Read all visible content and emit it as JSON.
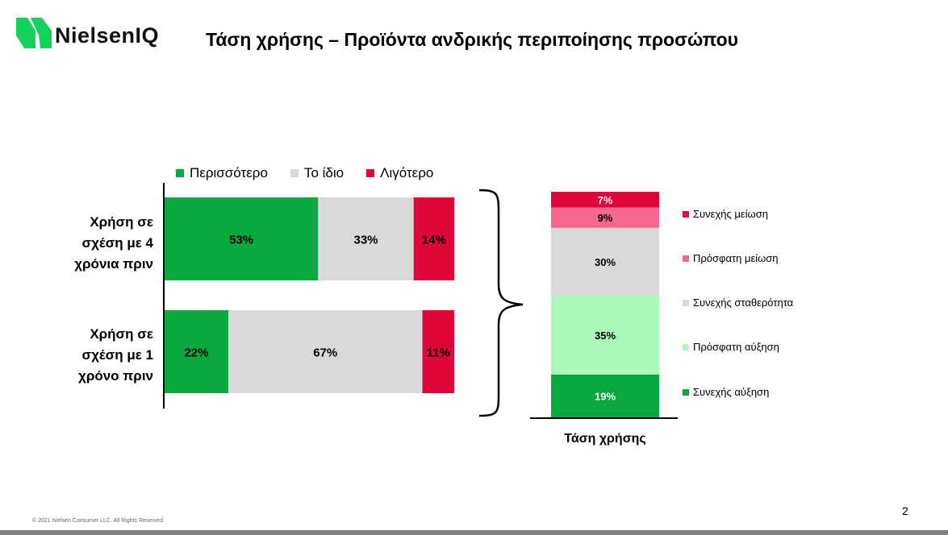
{
  "brand": {
    "name": "NielsenIQ",
    "logo_color": "#13d15a"
  },
  "title": "Τάση χρήσης – Προϊόντα ανδρικής περιποίησης προσώπου",
  "chart_data": [
    {
      "type": "bar",
      "orientation": "horizontal-stacked-100",
      "categories": [
        "Χρήση σε σχέση με 4 χρόνια πριν",
        "Χρήση σε σχέση με 1 χρόνο πριν"
      ],
      "category_lines": [
        [
          "Χρήση σε",
          "σχέση με 4",
          "χρόνια πριν"
        ],
        [
          "Χρήση σε",
          "σχέση με 1",
          "χρόνο πριν"
        ]
      ],
      "series": [
        {
          "name": "Περισσότερο",
          "color": "#0aa83f",
          "values": [
            53,
            22
          ],
          "labels": [
            "53%",
            "22%"
          ]
        },
        {
          "name": "Το ίδιο",
          "color": "#d9d9d9",
          "values": [
            33,
            67
          ],
          "labels": [
            "33%",
            "67%"
          ]
        },
        {
          "name": "Λιγότερο",
          "color": "#e1063a",
          "values": [
            14,
            11
          ],
          "labels": [
            "14%",
            "11%"
          ]
        }
      ],
      "legend_position": "top",
      "xlim": [
        0,
        100
      ]
    },
    {
      "type": "bar",
      "orientation": "vertical-stacked-100",
      "categories": [
        "Τάση χρήσης"
      ],
      "series": [
        {
          "name": "Συνεχής αύξηση",
          "color": "#0aa83f",
          "values": [
            19
          ],
          "labels": [
            "19%"
          ],
          "label_color": "#ffffff"
        },
        {
          "name": "Πρόσφατη αύξηση",
          "color": "#a9f7b9",
          "values": [
            35
          ],
          "labels": [
            "35%"
          ],
          "label_color": "#000000"
        },
        {
          "name": "Συνεχής σταθερότητα",
          "color": "#d9d9d9",
          "values": [
            30
          ],
          "labels": [
            "30%"
          ],
          "label_color": "#000000"
        },
        {
          "name": "Πρόσφατη μείωση",
          "color": "#f5678f",
          "values": [
            9
          ],
          "labels": [
            "9%"
          ],
          "label_color": "#000000"
        },
        {
          "name": "Συνεχής μείωση",
          "color": "#e1063a",
          "values": [
            7
          ],
          "labels": [
            "7%"
          ],
          "label_color": "#ffffff"
        }
      ],
      "legend_position": "right",
      "ylim": [
        0,
        100
      ]
    }
  ],
  "footer": {
    "copyright": "© 2021 Nielsen Consumer LLC. All Rights Reserved.",
    "page_number": "2"
  }
}
